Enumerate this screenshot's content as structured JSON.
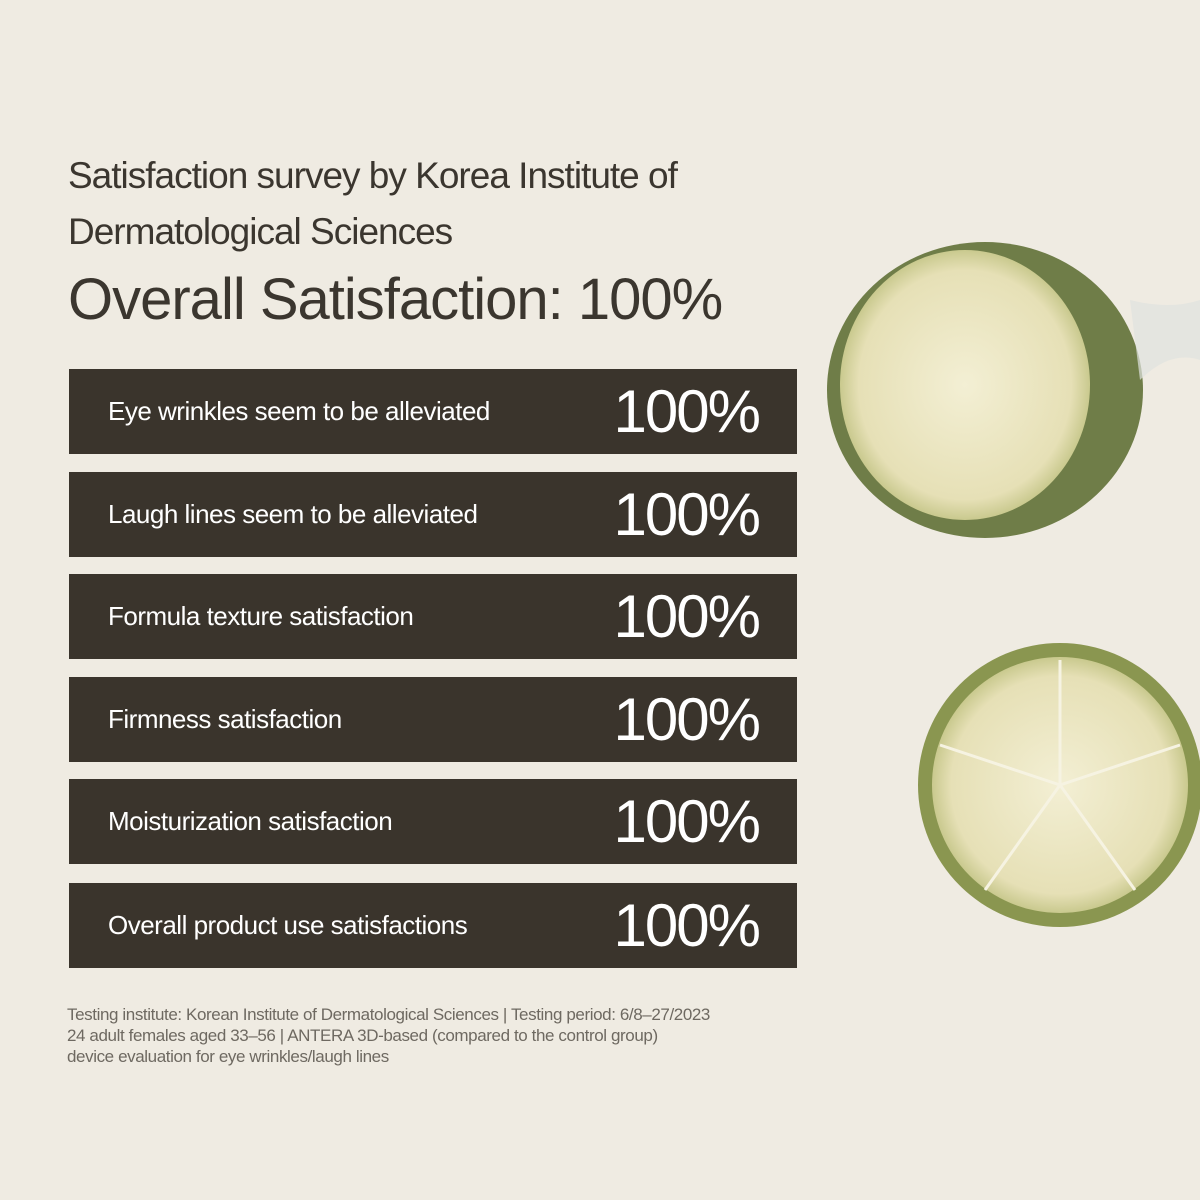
{
  "header": {
    "title": "Satisfaction survey by Korea Institute of Dermatological Sciences",
    "headline": "Overall Satisfaction: 100%"
  },
  "rows": [
    {
      "label": "Eye wrinkles seem to be alleviated",
      "value": "100%"
    },
    {
      "label": "Laugh lines seem to be alleviated",
      "value": "100%"
    },
    {
      "label": "Formula texture satisfaction",
      "value": "100%"
    },
    {
      "label": "Firmness satisfaction",
      "value": "100%"
    },
    {
      "label": "Moisturization satisfaction",
      "value": "100%"
    },
    {
      "label": "Overall product use satisfactions",
      "value": "100%"
    }
  ],
  "footnote": [
    "Testing institute: Korean Institute of Dermatological Sciences | Testing period: 6/8–27/2023",
    "24 adult females aged 33–56 | ANTERA 3D-based (compared to the control group)",
    "device evaluation for eye wrinkles/laugh lines"
  ]
}
